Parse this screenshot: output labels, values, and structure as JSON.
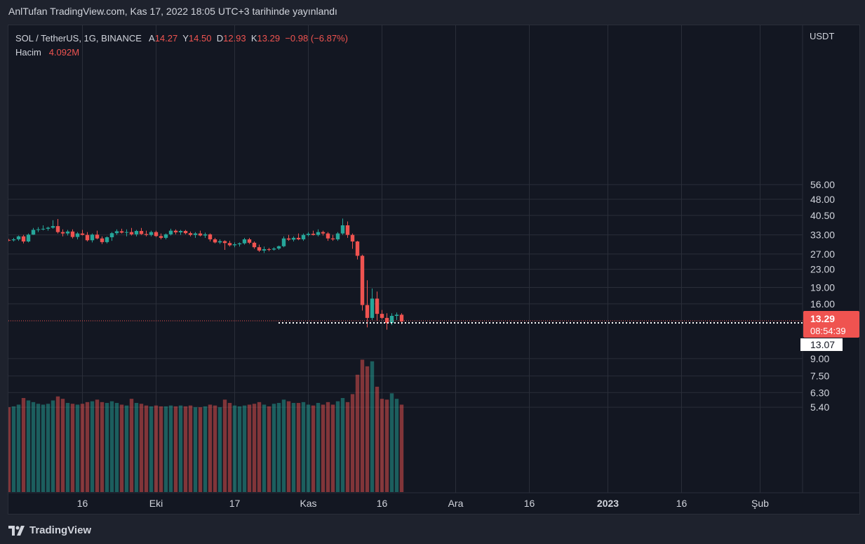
{
  "header": {
    "text": "AnlTufan TradingView.com, Kas 17, 2022 18:05 UTC+3 tarihinde yayınlandı"
  },
  "legend": {
    "symbol": "SOL / TetherUS, 1G, BINANCE",
    "o_label": "A",
    "o_value": "14.27",
    "h_label": "Y",
    "h_value": "14.50",
    "l_label": "D",
    "l_value": "12.93",
    "c_label": "K",
    "c_value": "13.29",
    "change": "−0.98 (−6.87%)",
    "volume_label": "Hacim",
    "volume_value": "4.092M"
  },
  "axis": {
    "currency": "USDT",
    "last_price": "13.29",
    "countdown": "08:54:39",
    "crosshair_price": "13.07"
  },
  "footer": {
    "brand": "TradingView",
    "logo_icon": "tradingview-logo-icon"
  },
  "colors": {
    "up": "#26a69a",
    "down": "#ef5350",
    "bg": "#131722",
    "grid": "#2a2e39",
    "text": "#d1d4dc"
  },
  "chart_data": {
    "type": "candlestick",
    "symbol": "SOL/USDT",
    "y_scale": "log",
    "y_ticks": [
      56.0,
      48.0,
      40.5,
      33.0,
      27.0,
      23.0,
      19.0,
      16.0,
      9.0,
      7.5,
      6.3,
      5.4
    ],
    "x_ticks": [
      "16",
      "Eki",
      "17",
      "Kas",
      "16",
      "Ara",
      "16",
      "2023",
      "16",
      "Şub"
    ],
    "x_tick_dates": [
      "2022-09-16",
      "2022-10-01",
      "2022-10-17",
      "2022-11-01",
      "2022-11-16",
      "2022-12-01",
      "2022-12-16",
      "2023-01-01",
      "2023-01-16",
      "2023-02-01"
    ],
    "bold_x_ticks": [
      "2023"
    ],
    "first_date": "2022-09-01",
    "candles": [
      {
        "o": 31.3,
        "h": 31.6,
        "l": 30.9,
        "c": 31.2,
        "v": 5.4
      },
      {
        "o": 31.2,
        "h": 32.0,
        "l": 30.8,
        "c": 31.5,
        "v": 5.45
      },
      {
        "o": 31.5,
        "h": 32.8,
        "l": 31.0,
        "c": 32.5,
        "v": 5.55
      },
      {
        "o": 32.5,
        "h": 33.0,
        "l": 30.2,
        "c": 30.8,
        "v": 5.95
      },
      {
        "o": 30.8,
        "h": 33.5,
        "l": 30.5,
        "c": 33.1,
        "v": 5.8
      },
      {
        "o": 33.1,
        "h": 35.5,
        "l": 33.0,
        "c": 34.8,
        "v": 5.7
      },
      {
        "o": 34.8,
        "h": 35.8,
        "l": 34.0,
        "c": 35.0,
        "v": 5.6
      },
      {
        "o": 35.0,
        "h": 36.5,
        "l": 34.6,
        "c": 35.2,
        "v": 5.55
      },
      {
        "o": 35.2,
        "h": 36.0,
        "l": 34.5,
        "c": 35.6,
        "v": 5.6
      },
      {
        "o": 35.6,
        "h": 38.5,
        "l": 35.2,
        "c": 36.2,
        "v": 5.8
      },
      {
        "o": 36.2,
        "h": 39.0,
        "l": 33.5,
        "c": 34.0,
        "v": 6.05
      },
      {
        "o": 34.0,
        "h": 35.0,
        "l": 32.5,
        "c": 33.5,
        "v": 5.9
      },
      {
        "o": 33.5,
        "h": 34.8,
        "l": 32.8,
        "c": 34.2,
        "v": 5.65
      },
      {
        "o": 34.2,
        "h": 35.0,
        "l": 31.8,
        "c": 32.3,
        "v": 5.6
      },
      {
        "o": 32.3,
        "h": 34.0,
        "l": 31.5,
        "c": 33.5,
        "v": 5.55
      },
      {
        "o": 33.5,
        "h": 34.8,
        "l": 32.8,
        "c": 33.0,
        "v": 5.6
      },
      {
        "o": 33.0,
        "h": 34.0,
        "l": 30.8,
        "c": 31.2,
        "v": 5.7
      },
      {
        "o": 31.2,
        "h": 33.5,
        "l": 30.5,
        "c": 33.1,
        "v": 5.75
      },
      {
        "o": 33.1,
        "h": 34.5,
        "l": 31.5,
        "c": 31.8,
        "v": 5.85
      },
      {
        "o": 31.8,
        "h": 32.5,
        "l": 30.0,
        "c": 30.6,
        "v": 5.7
      },
      {
        "o": 30.6,
        "h": 32.5,
        "l": 30.2,
        "c": 32.2,
        "v": 5.65
      },
      {
        "o": 32.2,
        "h": 34.0,
        "l": 31.0,
        "c": 33.6,
        "v": 5.75
      },
      {
        "o": 33.6,
        "h": 35.0,
        "l": 33.0,
        "c": 34.3,
        "v": 5.65
      },
      {
        "o": 34.3,
        "h": 35.2,
        "l": 33.5,
        "c": 33.8,
        "v": 5.55
      },
      {
        "o": 33.8,
        "h": 35.0,
        "l": 32.5,
        "c": 34.0,
        "v": 5.5
      },
      {
        "o": 34.0,
        "h": 35.5,
        "l": 32.8,
        "c": 33.2,
        "v": 5.9
      },
      {
        "o": 33.2,
        "h": 34.8,
        "l": 32.5,
        "c": 34.4,
        "v": 5.65
      },
      {
        "o": 34.4,
        "h": 35.5,
        "l": 33.0,
        "c": 33.3,
        "v": 5.6
      },
      {
        "o": 33.3,
        "h": 34.5,
        "l": 32.5,
        "c": 33.0,
        "v": 5.5
      },
      {
        "o": 33.0,
        "h": 34.5,
        "l": 32.5,
        "c": 34.0,
        "v": 5.45
      },
      {
        "o": 34.0,
        "h": 34.5,
        "l": 32.3,
        "c": 32.6,
        "v": 5.5
      },
      {
        "o": 32.6,
        "h": 33.5,
        "l": 31.5,
        "c": 32.0,
        "v": 5.45
      },
      {
        "o": 32.0,
        "h": 33.5,
        "l": 31.5,
        "c": 33.2,
        "v": 5.45
      },
      {
        "o": 33.2,
        "h": 35.2,
        "l": 32.8,
        "c": 34.5,
        "v": 5.5
      },
      {
        "o": 34.5,
        "h": 35.0,
        "l": 33.2,
        "c": 33.9,
        "v": 5.45
      },
      {
        "o": 33.9,
        "h": 34.8,
        "l": 33.0,
        "c": 34.4,
        "v": 5.5
      },
      {
        "o": 34.4,
        "h": 34.8,
        "l": 33.2,
        "c": 33.6,
        "v": 5.45
      },
      {
        "o": 33.6,
        "h": 34.2,
        "l": 32.5,
        "c": 33.0,
        "v": 5.5
      },
      {
        "o": 33.0,
        "h": 34.0,
        "l": 32.0,
        "c": 33.5,
        "v": 5.4
      },
      {
        "o": 33.5,
        "h": 34.5,
        "l": 32.5,
        "c": 32.8,
        "v": 5.4
      },
      {
        "o": 32.8,
        "h": 33.8,
        "l": 32.0,
        "c": 33.2,
        "v": 5.45
      },
      {
        "o": 33.2,
        "h": 33.5,
        "l": 30.8,
        "c": 31.5,
        "v": 5.55
      },
      {
        "o": 31.5,
        "h": 32.0,
        "l": 30.2,
        "c": 30.5,
        "v": 5.5
      },
      {
        "o": 30.5,
        "h": 31.5,
        "l": 30.0,
        "c": 30.9,
        "v": 5.4
      },
      {
        "o": 30.9,
        "h": 31.2,
        "l": 28.2,
        "c": 30.3,
        "v": 5.85
      },
      {
        "o": 30.3,
        "h": 31.0,
        "l": 29.2,
        "c": 29.6,
        "v": 5.65
      },
      {
        "o": 29.6,
        "h": 30.5,
        "l": 29.0,
        "c": 29.9,
        "v": 5.5
      },
      {
        "o": 29.9,
        "h": 30.5,
        "l": 29.2,
        "c": 30.2,
        "v": 5.45
      },
      {
        "o": 30.2,
        "h": 32.0,
        "l": 29.8,
        "c": 31.5,
        "v": 5.5
      },
      {
        "o": 31.5,
        "h": 32.0,
        "l": 30.0,
        "c": 30.4,
        "v": 5.55
      },
      {
        "o": 30.4,
        "h": 30.8,
        "l": 28.5,
        "c": 29.0,
        "v": 5.6
      },
      {
        "o": 29.0,
        "h": 29.8,
        "l": 27.6,
        "c": 28.0,
        "v": 5.7
      },
      {
        "o": 28.0,
        "h": 29.2,
        "l": 27.3,
        "c": 28.4,
        "v": 5.55
      },
      {
        "o": 28.4,
        "h": 28.8,
        "l": 27.8,
        "c": 28.3,
        "v": 5.45
      },
      {
        "o": 28.3,
        "h": 29.0,
        "l": 28.0,
        "c": 28.6,
        "v": 5.6
      },
      {
        "o": 28.6,
        "h": 29.5,
        "l": 28.2,
        "c": 29.3,
        "v": 5.65
      },
      {
        "o": 29.3,
        "h": 32.5,
        "l": 29.0,
        "c": 31.8,
        "v": 5.85
      },
      {
        "o": 31.8,
        "h": 33.0,
        "l": 31.0,
        "c": 31.4,
        "v": 5.75
      },
      {
        "o": 31.4,
        "h": 32.5,
        "l": 30.8,
        "c": 32.0,
        "v": 5.65
      },
      {
        "o": 32.0,
        "h": 33.5,
        "l": 31.2,
        "c": 31.5,
        "v": 5.65
      },
      {
        "o": 31.5,
        "h": 33.5,
        "l": 31.0,
        "c": 33.0,
        "v": 5.7
      },
      {
        "o": 33.0,
        "h": 34.0,
        "l": 32.5,
        "c": 33.4,
        "v": 5.55
      },
      {
        "o": 33.4,
        "h": 34.5,
        "l": 32.8,
        "c": 33.0,
        "v": 5.5
      },
      {
        "o": 33.0,
        "h": 35.0,
        "l": 32.5,
        "c": 34.0,
        "v": 5.65
      },
      {
        "o": 34.0,
        "h": 34.5,
        "l": 32.8,
        "c": 33.5,
        "v": 5.55
      },
      {
        "o": 33.5,
        "h": 34.0,
        "l": 31.0,
        "c": 31.8,
        "v": 5.7
      },
      {
        "o": 31.8,
        "h": 33.0,
        "l": 31.0,
        "c": 31.5,
        "v": 5.55
      },
      {
        "o": 31.5,
        "h": 34.0,
        "l": 31.0,
        "c": 33.5,
        "v": 5.75
      },
      {
        "o": 33.5,
        "h": 39.2,
        "l": 33.0,
        "c": 36.5,
        "v": 5.95
      },
      {
        "o": 36.5,
        "h": 38.0,
        "l": 32.0,
        "c": 33.0,
        "v": 5.7
      },
      {
        "o": 33.0,
        "h": 33.5,
        "l": 28.5,
        "c": 30.8,
        "v": 6.2
      },
      {
        "o": 30.8,
        "h": 31.0,
        "l": 25.5,
        "c": 26.5,
        "v": 7.6
      },
      {
        "o": 26.5,
        "h": 26.8,
        "l": 14.9,
        "c": 15.8,
        "v": 8.9
      },
      {
        "o": 15.8,
        "h": 20.5,
        "l": 12.5,
        "c": 13.8,
        "v": 8.3
      },
      {
        "o": 13.8,
        "h": 18.8,
        "l": 13.5,
        "c": 16.9,
        "v": 8.75
      },
      {
        "o": 16.9,
        "h": 18.2,
        "l": 13.4,
        "c": 14.4,
        "v": 6.7
      },
      {
        "o": 14.4,
        "h": 15.0,
        "l": 13.6,
        "c": 13.8,
        "v": 5.9
      },
      {
        "o": 13.8,
        "h": 14.5,
        "l": 12.2,
        "c": 13.1,
        "v": 5.85
      },
      {
        "o": 13.1,
        "h": 14.5,
        "l": 12.8,
        "c": 14.1,
        "v": 6.25
      },
      {
        "o": 14.1,
        "h": 14.6,
        "l": 13.5,
        "c": 14.27,
        "v": 5.9
      },
      {
        "o": 14.27,
        "h": 14.5,
        "l": 12.93,
        "c": 13.29,
        "v": 5.55
      }
    ]
  }
}
